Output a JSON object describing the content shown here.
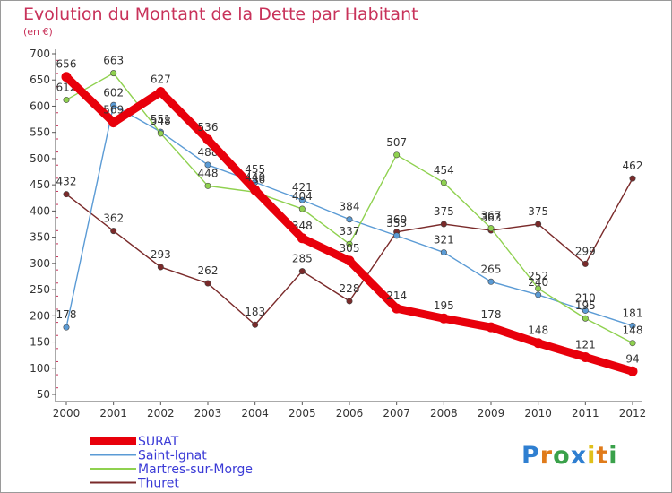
{
  "chart_data": {
    "type": "line",
    "title": "Evolution du Montant de la Dette par Habitant",
    "subtitle": "(en €)",
    "x": [
      "2000",
      "2001",
      "2002",
      "2003",
      "2004",
      "2005",
      "2006",
      "2007",
      "2008",
      "2009",
      "2010",
      "2011",
      "2012"
    ],
    "ylim": [
      50,
      700
    ],
    "yticks": [
      50,
      100,
      150,
      200,
      250,
      300,
      350,
      400,
      450,
      500,
      550,
      600,
      650,
      700
    ],
    "grid": false,
    "legend_position": "bottom-left",
    "series": [
      {
        "name": "SURAT",
        "color": "#e8000b",
        "values": [
          656,
          569,
          627,
          536,
          440,
          348,
          305,
          214,
          195,
          178,
          148,
          121,
          94
        ]
      },
      {
        "name": "Saint-Ignat",
        "color": "#5b9bd5",
        "values": [
          178,
          602,
          551,
          488,
          455,
          421,
          384,
          353,
          321,
          265,
          240,
          210,
          181
        ]
      },
      {
        "name": "Martres-sur-Morge",
        "color": "#8fd14f",
        "values": [
          612,
          663,
          548,
          448,
          436,
          404,
          337,
          507,
          454,
          367,
          252,
          195,
          148
        ]
      },
      {
        "name": "Thuret",
        "color": "#7a2a2a",
        "values": [
          432,
          362,
          293,
          262,
          183,
          285,
          228,
          360,
          375,
          363,
          375,
          299,
          462
        ]
      }
    ]
  },
  "brand": {
    "text": "Proxiti"
  }
}
